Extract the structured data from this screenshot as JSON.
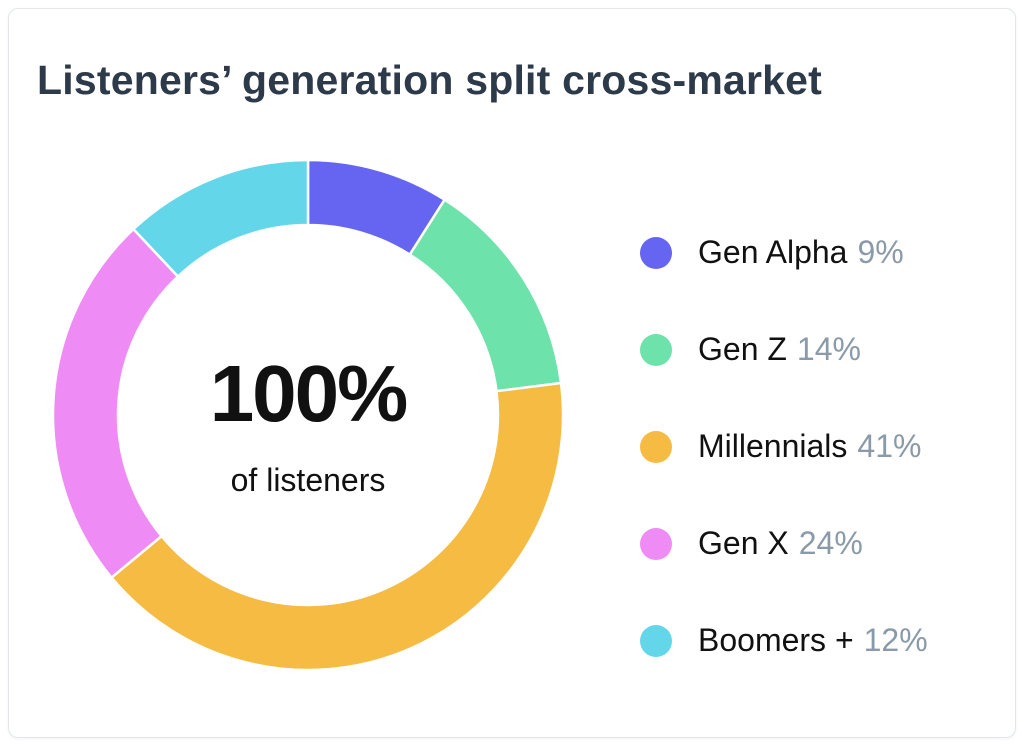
{
  "chart_data": {
    "type": "pie",
    "variant": "donut",
    "title": "Listeners’ generation split cross-market",
    "center_value": "100%",
    "center_label": "of listeners",
    "legend_placement": "right",
    "slices": [
      {
        "name": "Gen Alpha",
        "value": 9,
        "label": "9%",
        "color": "#6565f2"
      },
      {
        "name": "Gen Z",
        "value": 14,
        "label": "14%",
        "color": "#6ee2ab"
      },
      {
        "name": "Millennials",
        "value": 41,
        "label": "41%",
        "color": "#f5bb42"
      },
      {
        "name": "Gen X",
        "value": 24,
        "label": "24%",
        "color": "#ef8bf5"
      },
      {
        "name": "Boomers +",
        "value": 12,
        "label": "12%",
        "color": "#64d6ea"
      }
    ]
  }
}
